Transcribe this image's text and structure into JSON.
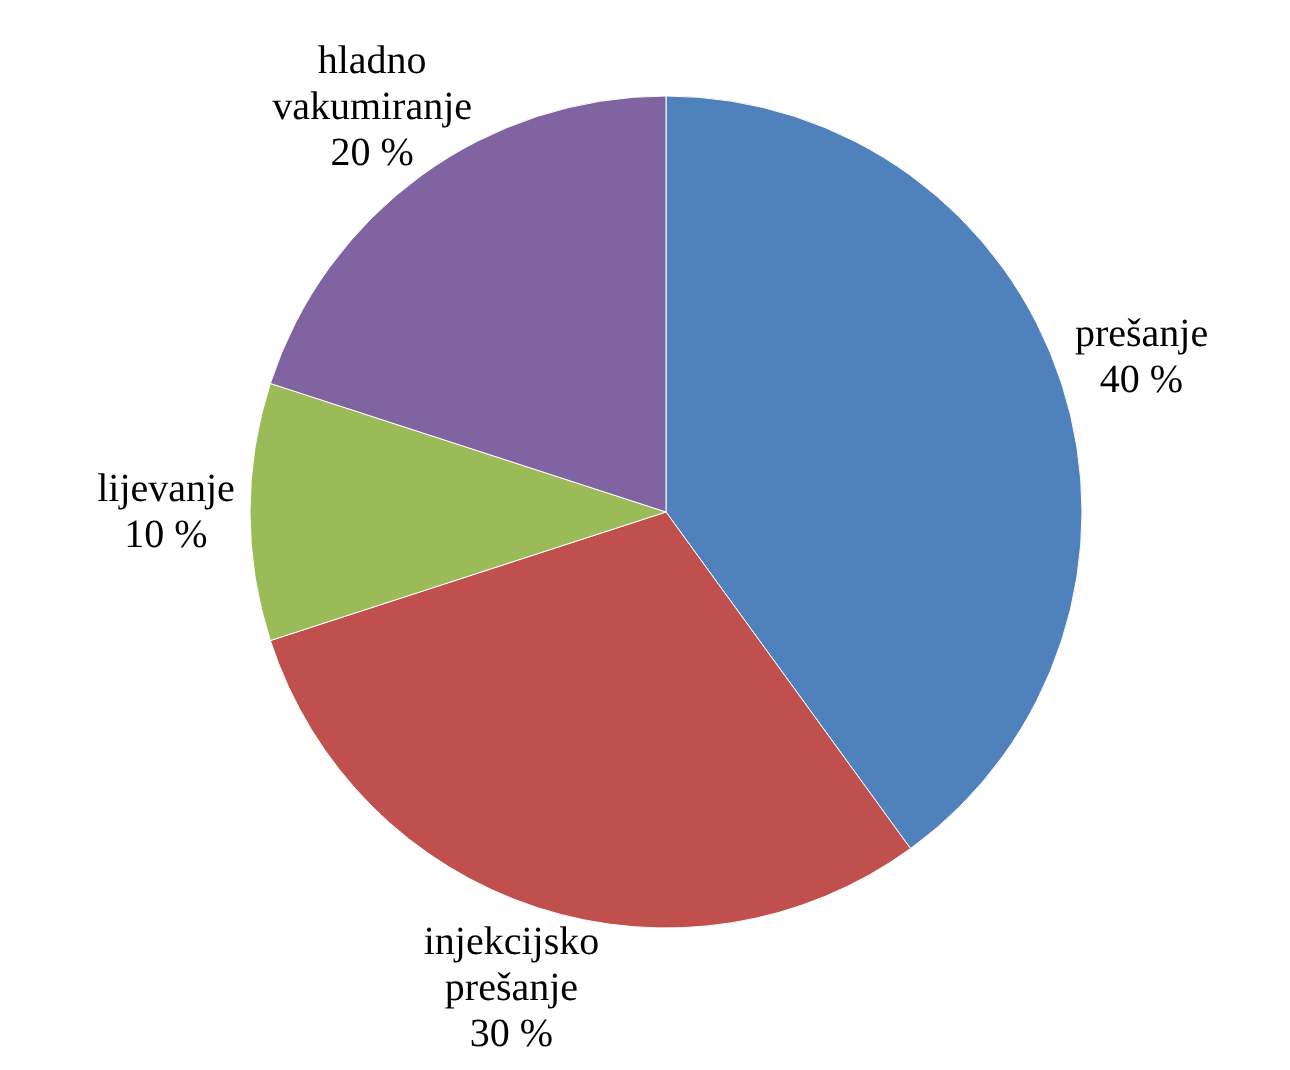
{
  "chart_data": {
    "type": "pie",
    "categories": [
      "prešanje",
      "injekcijsko prešanje",
      "lijevanje",
      "hladno vakumiranje"
    ],
    "values": [
      40,
      30,
      10,
      20
    ],
    "value_labels": [
      "40 %",
      "30 %",
      "10 %",
      "20 %"
    ],
    "colors": [
      "#4f81bd",
      "#c0504d",
      "#9bbb59",
      "#8064a2"
    ]
  }
}
